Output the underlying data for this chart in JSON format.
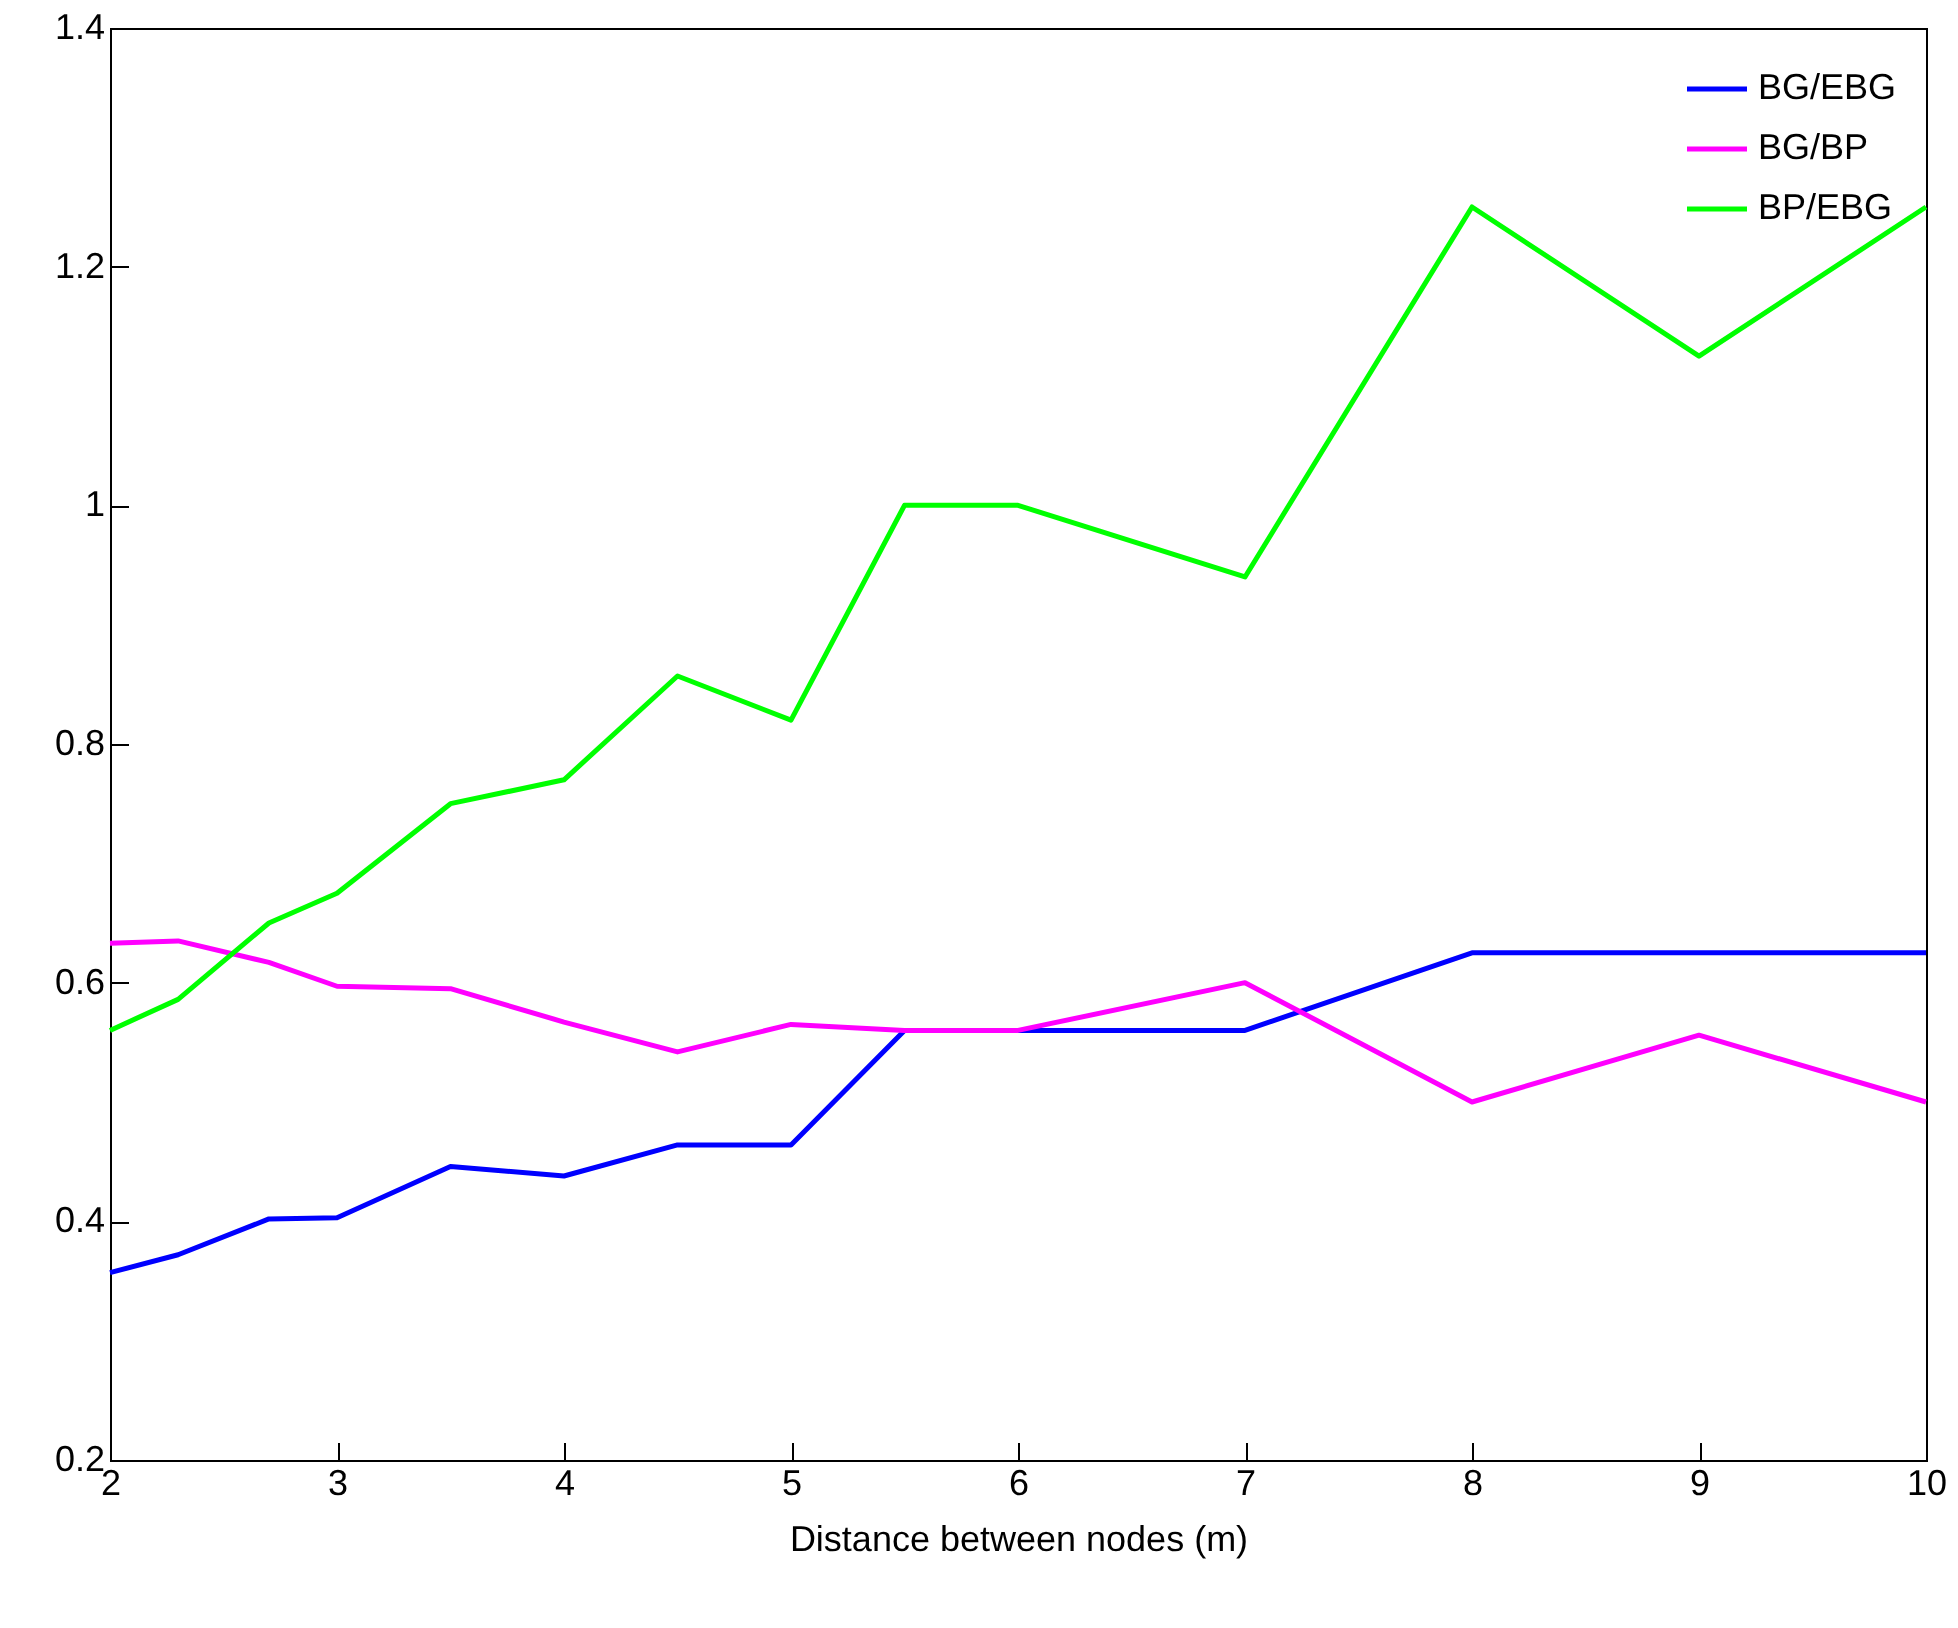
{
  "chart_data": {
    "type": "line",
    "xlabel": "Distance between nodes (m)",
    "x": [
      2,
      2.3,
      2.7,
      3,
      3.5,
      4,
      4.5,
      5,
      5.5,
      6,
      7,
      8,
      9,
      10
    ],
    "xlim": [
      2,
      10
    ],
    "xticks": [
      2,
      3,
      4,
      5,
      6,
      7,
      8,
      9,
      10
    ],
    "ylim": [
      0.2,
      1.4
    ],
    "yticks": [
      0.2,
      0.4,
      0.6,
      0.8,
      1,
      1.2,
      1.4
    ],
    "grid": false,
    "legend": "top right",
    "marker": "none",
    "line_style": "solid",
    "series": [
      {
        "name": "BG/EBG",
        "color": "#0000ff",
        "values": [
          0.357,
          0.372,
          0.402,
          0.403,
          0.446,
          0.438,
          0.464,
          0.464,
          0.56,
          0.56,
          0.56,
          0.625,
          0.625,
          0.625
        ]
      },
      {
        "name": "BG/BP",
        "color": "#ff00ff",
        "values": [
          0.633,
          0.635,
          0.617,
          0.597,
          0.595,
          0.567,
          0.542,
          0.565,
          0.56,
          0.56,
          0.6,
          0.5,
          0.556,
          0.5
        ]
      },
      {
        "name": "BP/EBG",
        "color": "#00ff00",
        "values": [
          0.56,
          0.586,
          0.65,
          0.675,
          0.75,
          0.77,
          0.857,
          0.82,
          1.0,
          1.0,
          0.94,
          1.25,
          1.125,
          1.25
        ]
      }
    ]
  }
}
